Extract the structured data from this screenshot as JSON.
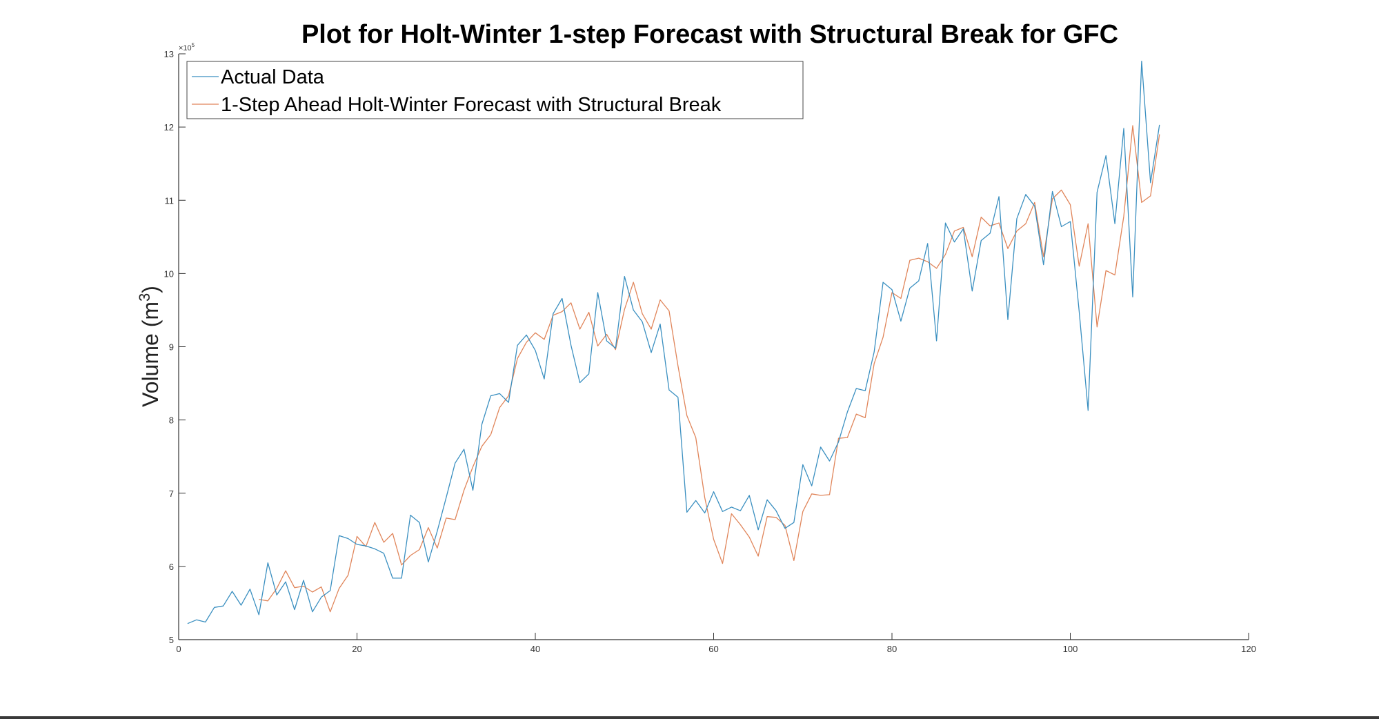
{
  "chart_data": {
    "type": "line",
    "title": "Plot for Holt-Winter 1-step Forecast with Structural Break for GFC",
    "xlabel": "",
    "ylabel": "Volume (m",
    "ylabel_sup": "3",
    "ylabel_close": ")",
    "y_exponent_base": "×10",
    "y_exponent_power": "5",
    "xlim": [
      0,
      120
    ],
    "ylim": [
      5,
      13
    ],
    "x_ticks": [
      "0",
      "20",
      "40",
      "60",
      "80",
      "100",
      "120"
    ],
    "y_ticks": [
      "5",
      "6",
      "7",
      "8",
      "9",
      "10",
      "11",
      "12",
      "13"
    ],
    "grid": false,
    "legend_position": "top-left",
    "colors": {
      "actual": "#3a8fc0",
      "forecast": "#e0855a",
      "axis": "#333333"
    },
    "series": [
      {
        "name": "Actual Data",
        "x": [
          1,
          2,
          3,
          4,
          5,
          6,
          7,
          8,
          9,
          10,
          11,
          12,
          13,
          14,
          15,
          16,
          17,
          18,
          19,
          20,
          21,
          22,
          23,
          24,
          25,
          26,
          27,
          28,
          29,
          30,
          31,
          32,
          33,
          34,
          35,
          36,
          37,
          38,
          39,
          40,
          41,
          42,
          43,
          44,
          45,
          46,
          47,
          48,
          49,
          50,
          51,
          52,
          53,
          54,
          55,
          56,
          57,
          58,
          59,
          60,
          61,
          62,
          63,
          64,
          65,
          66,
          67,
          68,
          69,
          70,
          71,
          72,
          73,
          74,
          75,
          76,
          77,
          78,
          79,
          80,
          81,
          82,
          83,
          84,
          85,
          86,
          87,
          88,
          89,
          90,
          91,
          92,
          93,
          94,
          95,
          96,
          97,
          98,
          99,
          100,
          101,
          102,
          103,
          104,
          105,
          106,
          107,
          108,
          109,
          110
        ],
        "values": [
          5.22,
          5.27,
          5.24,
          5.44,
          5.46,
          5.66,
          5.47,
          5.69,
          5.34,
          6.05,
          5.61,
          5.79,
          5.41,
          5.81,
          5.38,
          5.58,
          5.67,
          6.42,
          6.38,
          6.3,
          6.28,
          6.24,
          6.18,
          5.84,
          5.84,
          6.7,
          6.6,
          6.06,
          6.48,
          6.94,
          7.41,
          7.6,
          7.04,
          7.94,
          8.33,
          8.36,
          8.24,
          9.02,
          9.16,
          8.95,
          8.56,
          9.45,
          9.66,
          9.02,
          8.51,
          8.63,
          9.74,
          9.08,
          8.98,
          9.96,
          9.5,
          9.34,
          8.92,
          9.31,
          8.41,
          8.31,
          6.74,
          6.9,
          6.73,
          7.02,
          6.75,
          6.81,
          6.76,
          6.97,
          6.5,
          6.91,
          6.76,
          6.52,
          6.6,
          7.39,
          7.1,
          7.63,
          7.44,
          7.7,
          8.11,
          8.43,
          8.4,
          8.93,
          9.88,
          9.78,
          9.35,
          9.8,
          9.9,
          10.41,
          9.08,
          10.69,
          10.43,
          10.61,
          9.76,
          10.45,
          10.55,
          11.05,
          9.37,
          10.75,
          11.08,
          10.92,
          10.12,
          11.12,
          10.64,
          10.71,
          9.48,
          8.13,
          11.11,
          11.61,
          10.68,
          11.98,
          9.68,
          12.9,
          11.24,
          12.03
        ]
      },
      {
        "name": "1-Step Ahead Holt-Winter Forecast with Structural Break",
        "x": [
          9,
          10,
          11,
          12,
          13,
          14,
          15,
          16,
          17,
          18,
          19,
          20,
          21,
          22,
          23,
          24,
          25,
          26,
          27,
          28,
          29,
          30,
          31,
          32,
          33,
          34,
          35,
          36,
          37,
          38,
          39,
          40,
          41,
          42,
          43,
          44,
          45,
          46,
          47,
          48,
          49,
          50,
          51,
          52,
          53,
          54,
          55,
          56,
          57,
          58,
          59,
          60,
          61,
          62,
          63,
          64,
          65,
          66,
          67,
          68,
          69,
          70,
          71,
          72,
          73,
          74,
          75,
          76,
          77,
          78,
          79,
          80,
          81,
          82,
          83,
          84,
          85,
          86,
          87,
          88,
          89,
          90,
          91,
          92,
          93,
          94,
          95,
          96,
          97,
          98,
          99,
          100,
          101,
          102,
          103,
          104,
          105,
          106,
          107,
          108,
          109,
          110
        ],
        "values": [
          5.55,
          5.53,
          5.7,
          5.94,
          5.71,
          5.73,
          5.65,
          5.72,
          5.38,
          5.7,
          5.88,
          6.41,
          6.27,
          6.6,
          6.33,
          6.45,
          6.02,
          6.15,
          6.23,
          6.53,
          6.25,
          6.66,
          6.64,
          7.04,
          7.36,
          7.64,
          7.8,
          8.17,
          8.33,
          8.84,
          9.06,
          9.19,
          9.1,
          9.43,
          9.48,
          9.6,
          9.24,
          9.47,
          9.01,
          9.17,
          8.96,
          9.51,
          9.88,
          9.45,
          9.24,
          9.64,
          9.49,
          8.74,
          8.06,
          7.76,
          6.94,
          6.37,
          6.04,
          6.72,
          6.57,
          6.4,
          6.14,
          6.68,
          6.67,
          6.56,
          6.08,
          6.75,
          6.99,
          6.97,
          6.98,
          7.75,
          7.76,
          8.08,
          8.03,
          8.77,
          9.13,
          9.74,
          9.66,
          10.18,
          10.21,
          10.16,
          10.07,
          10.26,
          10.58,
          10.63,
          10.23,
          10.77,
          10.65,
          10.69,
          10.34,
          10.58,
          10.68,
          10.97,
          10.23,
          11.02,
          11.14,
          10.94,
          10.1,
          10.68,
          9.27,
          10.04,
          9.98,
          10.78,
          12.02,
          10.97,
          11.06,
          11.9
        ]
      }
    ]
  }
}
